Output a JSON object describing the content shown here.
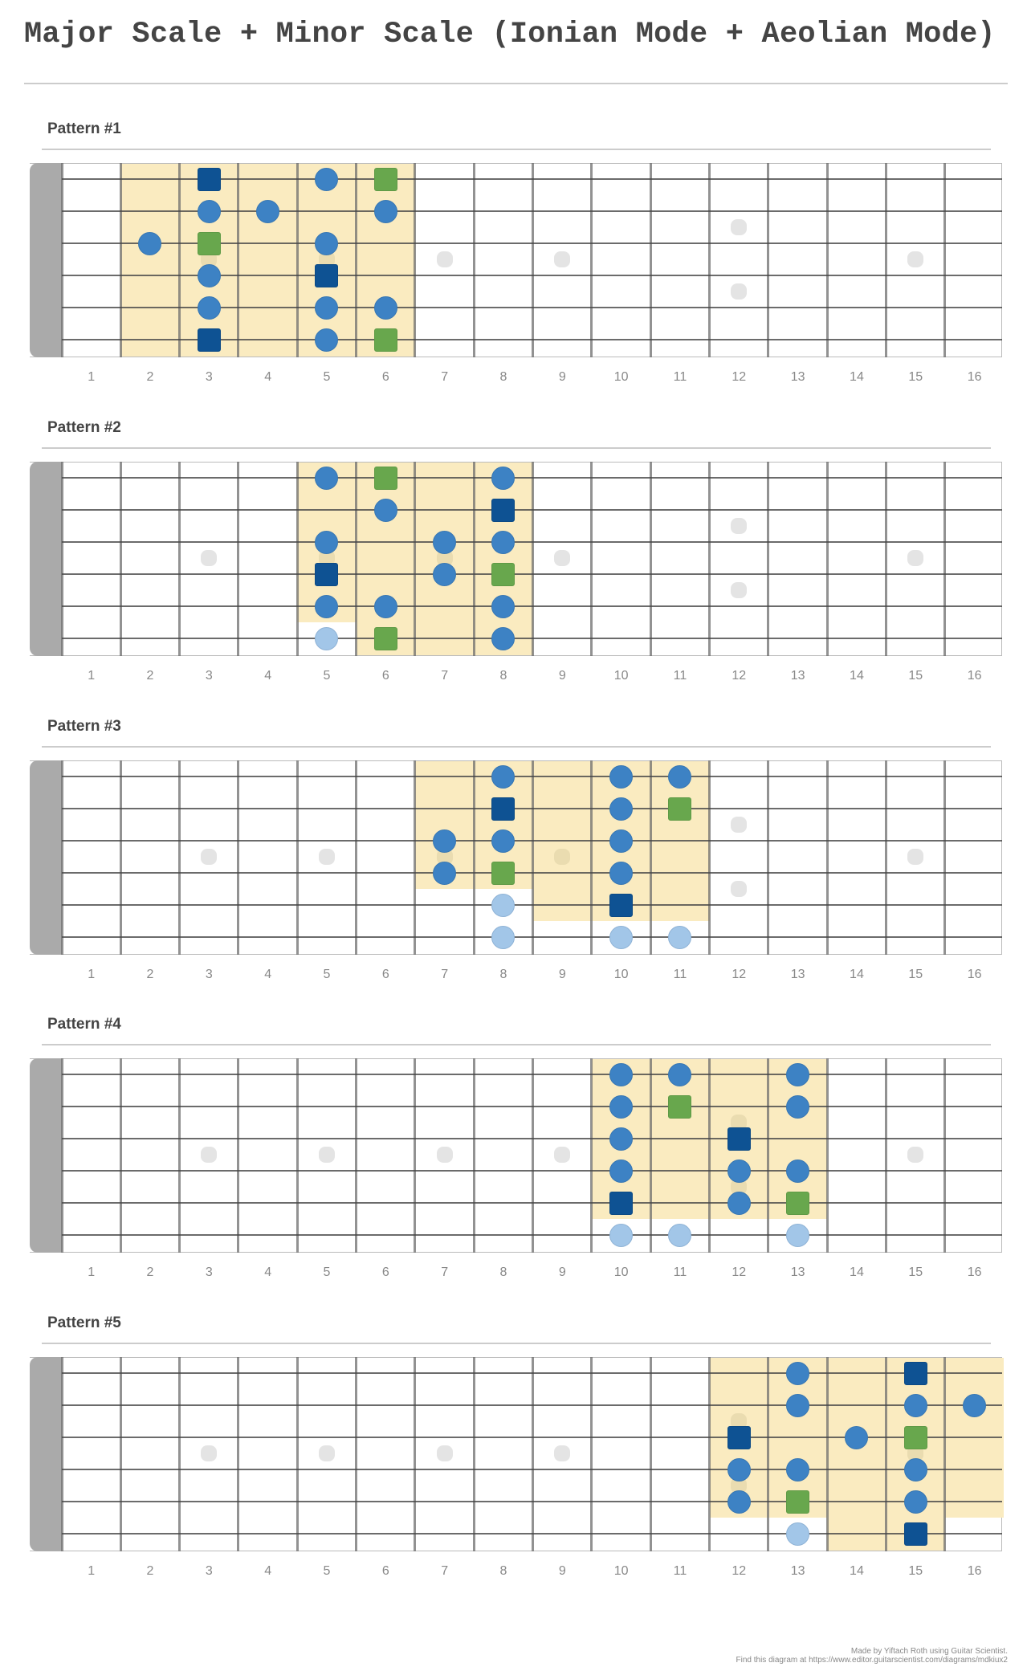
{
  "title": "Major Scale + Minor Scale (Ionian Mode + Aeolian Mode)",
  "colors": {
    "note_circle": "#3d82c4",
    "note_light": "#a2c6e8",
    "root_square_major": "#0e5293",
    "root_square_minor": "#68a74d",
    "highlight": "#faebc0",
    "nut": "#aaaaaa",
    "inlay": "#e4e4e4"
  },
  "legend_note": "c = scale note, l = out-of-position note (light), r = major root (dark blue square), g = minor root (green square)",
  "fretboard": {
    "frets": 16,
    "strings": 6,
    "fret_numbers": [
      "1",
      "2",
      "3",
      "4",
      "5",
      "6",
      "7",
      "8",
      "9",
      "10",
      "11",
      "12",
      "13",
      "14",
      "15",
      "16"
    ],
    "inlays": [
      {
        "fret": 3,
        "pos": "mid"
      },
      {
        "fret": 5,
        "pos": "mid"
      },
      {
        "fret": 7,
        "pos": "mid"
      },
      {
        "fret": 9,
        "pos": "mid"
      },
      {
        "fret": 12,
        "pos": "upper"
      },
      {
        "fret": 12,
        "pos": "lower"
      },
      {
        "fret": 15,
        "pos": "mid"
      }
    ]
  },
  "patterns": [
    {
      "label": "Pattern #1",
      "highlights": [
        {
          "from_fret": 2,
          "to_fret": 6,
          "from_string": 1,
          "to_string": 6
        }
      ],
      "notes": [
        {
          "s": 1,
          "f": 3,
          "t": "r"
        },
        {
          "s": 1,
          "f": 5,
          "t": "c"
        },
        {
          "s": 1,
          "f": 6,
          "t": "g"
        },
        {
          "s": 2,
          "f": 3,
          "t": "c"
        },
        {
          "s": 2,
          "f": 4,
          "t": "c"
        },
        {
          "s": 2,
          "f": 6,
          "t": "c"
        },
        {
          "s": 3,
          "f": 2,
          "t": "c"
        },
        {
          "s": 3,
          "f": 3,
          "t": "g"
        },
        {
          "s": 3,
          "f": 5,
          "t": "c"
        },
        {
          "s": 4,
          "f": 3,
          "t": "c"
        },
        {
          "s": 4,
          "f": 5,
          "t": "r"
        },
        {
          "s": 5,
          "f": 3,
          "t": "c"
        },
        {
          "s": 5,
          "f": 5,
          "t": "c"
        },
        {
          "s": 5,
          "f": 6,
          "t": "c"
        },
        {
          "s": 6,
          "f": 3,
          "t": "r"
        },
        {
          "s": 6,
          "f": 5,
          "t": "c"
        },
        {
          "s": 6,
          "f": 6,
          "t": "g"
        }
      ]
    },
    {
      "label": "Pattern #2",
      "highlights": [
        {
          "from_fret": 5,
          "to_fret": 5,
          "from_string": 1,
          "to_string": 5
        },
        {
          "from_fret": 6,
          "to_fret": 8,
          "from_string": 1,
          "to_string": 6
        }
      ],
      "notes": [
        {
          "s": 1,
          "f": 5,
          "t": "c"
        },
        {
          "s": 1,
          "f": 6,
          "t": "g"
        },
        {
          "s": 1,
          "f": 8,
          "t": "c"
        },
        {
          "s": 2,
          "f": 6,
          "t": "c"
        },
        {
          "s": 2,
          "f": 8,
          "t": "r"
        },
        {
          "s": 3,
          "f": 5,
          "t": "c"
        },
        {
          "s": 3,
          "f": 7,
          "t": "c"
        },
        {
          "s": 3,
          "f": 8,
          "t": "c"
        },
        {
          "s": 4,
          "f": 5,
          "t": "r"
        },
        {
          "s": 4,
          "f": 7,
          "t": "c"
        },
        {
          "s": 4,
          "f": 8,
          "t": "g"
        },
        {
          "s": 5,
          "f": 5,
          "t": "c"
        },
        {
          "s": 5,
          "f": 6,
          "t": "c"
        },
        {
          "s": 5,
          "f": 8,
          "t": "c"
        },
        {
          "s": 6,
          "f": 5,
          "t": "l"
        },
        {
          "s": 6,
          "f": 6,
          "t": "g"
        },
        {
          "s": 6,
          "f": 8,
          "t": "c"
        }
      ]
    },
    {
      "label": "Pattern #3",
      "highlights": [
        {
          "from_fret": 7,
          "to_fret": 8,
          "from_string": 1,
          "to_string": 4
        },
        {
          "from_fret": 9,
          "to_fret": 11,
          "from_string": 1,
          "to_string": 5
        }
      ],
      "notes": [
        {
          "s": 1,
          "f": 8,
          "t": "c"
        },
        {
          "s": 1,
          "f": 10,
          "t": "c"
        },
        {
          "s": 1,
          "f": 11,
          "t": "c"
        },
        {
          "s": 2,
          "f": 8,
          "t": "r"
        },
        {
          "s": 2,
          "f": 10,
          "t": "c"
        },
        {
          "s": 2,
          "f": 11,
          "t": "g"
        },
        {
          "s": 3,
          "f": 7,
          "t": "c"
        },
        {
          "s": 3,
          "f": 8,
          "t": "c"
        },
        {
          "s": 3,
          "f": 10,
          "t": "c"
        },
        {
          "s": 4,
          "f": 7,
          "t": "c"
        },
        {
          "s": 4,
          "f": 8,
          "t": "g"
        },
        {
          "s": 4,
          "f": 10,
          "t": "c"
        },
        {
          "s": 5,
          "f": 8,
          "t": "l"
        },
        {
          "s": 5,
          "f": 10,
          "t": "r"
        },
        {
          "s": 6,
          "f": 8,
          "t": "l"
        },
        {
          "s": 6,
          "f": 10,
          "t": "l"
        },
        {
          "s": 6,
          "f": 11,
          "t": "l"
        }
      ]
    },
    {
      "label": "Pattern #4",
      "highlights": [
        {
          "from_fret": 10,
          "to_fret": 13,
          "from_string": 1,
          "to_string": 5
        }
      ],
      "notes": [
        {
          "s": 1,
          "f": 10,
          "t": "c"
        },
        {
          "s": 1,
          "f": 11,
          "t": "c"
        },
        {
          "s": 1,
          "f": 13,
          "t": "c"
        },
        {
          "s": 2,
          "f": 10,
          "t": "c"
        },
        {
          "s": 2,
          "f": 11,
          "t": "g"
        },
        {
          "s": 2,
          "f": 13,
          "t": "c"
        },
        {
          "s": 3,
          "f": 10,
          "t": "c"
        },
        {
          "s": 3,
          "f": 12,
          "t": "r"
        },
        {
          "s": 4,
          "f": 10,
          "t": "c"
        },
        {
          "s": 4,
          "f": 12,
          "t": "c"
        },
        {
          "s": 4,
          "f": 13,
          "t": "c"
        },
        {
          "s": 5,
          "f": 10,
          "t": "r"
        },
        {
          "s": 5,
          "f": 12,
          "t": "c"
        },
        {
          "s": 5,
          "f": 13,
          "t": "g"
        },
        {
          "s": 6,
          "f": 10,
          "t": "l"
        },
        {
          "s": 6,
          "f": 11,
          "t": "l"
        },
        {
          "s": 6,
          "f": 13,
          "t": "l"
        }
      ]
    },
    {
      "label": "Pattern #5",
      "highlights": [
        {
          "from_fret": 12,
          "to_fret": 13,
          "from_string": 1,
          "to_string": 5
        },
        {
          "from_fret": 14,
          "to_fret": 15,
          "from_string": 1,
          "to_string": 6
        },
        {
          "from_fret": 16,
          "to_fret": 16,
          "from_string": 1,
          "to_string": 5
        }
      ],
      "notes": [
        {
          "s": 1,
          "f": 13,
          "t": "c"
        },
        {
          "s": 1,
          "f": 15,
          "t": "r"
        },
        {
          "s": 2,
          "f": 13,
          "t": "c"
        },
        {
          "s": 2,
          "f": 15,
          "t": "c"
        },
        {
          "s": 2,
          "f": 16,
          "t": "c"
        },
        {
          "s": 3,
          "f": 12,
          "t": "r"
        },
        {
          "s": 3,
          "f": 14,
          "t": "c"
        },
        {
          "s": 3,
          "f": 15,
          "t": "g"
        },
        {
          "s": 4,
          "f": 12,
          "t": "c"
        },
        {
          "s": 4,
          "f": 13,
          "t": "c"
        },
        {
          "s": 4,
          "f": 15,
          "t": "c"
        },
        {
          "s": 5,
          "f": 12,
          "t": "c"
        },
        {
          "s": 5,
          "f": 13,
          "t": "g"
        },
        {
          "s": 5,
          "f": 15,
          "t": "c"
        },
        {
          "s": 6,
          "f": 13,
          "t": "l"
        },
        {
          "s": 6,
          "f": 15,
          "t": "r"
        }
      ]
    }
  ],
  "footer": {
    "line1": "Made by Yiftach Roth using Guitar Scientist.",
    "line2": "Find this diagram at https://www.editor.guitarscientist.com/diagrams/mdkiux2"
  }
}
